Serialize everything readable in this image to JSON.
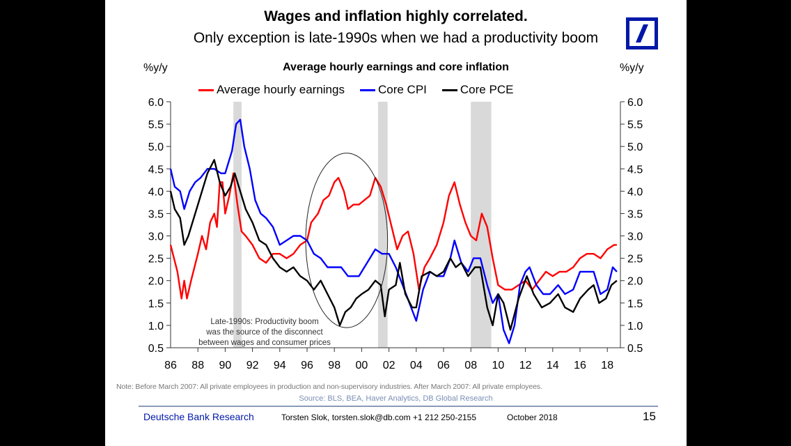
{
  "slide": {
    "title": "Wages and inflation highly correlated.",
    "subtitle": "Only exception is late-1990s when we had a productivity boom",
    "logo": "deutsche-bank-logo",
    "unit_left": "%y/y",
    "unit_right": "%y/y",
    "note": "Note: Before March 2007: All private employees in production and non-supervisory industries. After March 2007: All private employees.",
    "source": "Source: BLS, BEA, Haver Analytics, DB Global Research",
    "footer": {
      "brand": "Deutsche Bank Research",
      "author": "Torsten Slok, torsten.slok@db.com  +1 212 250-2155",
      "date": "October 2018",
      "page": "15"
    },
    "colors": {
      "brand": "#0018a8",
      "ahe": "#ff0000",
      "cpi": "#0000ff",
      "pce": "#000000",
      "recession": "#d9d9d9"
    }
  },
  "chart_data": {
    "type": "line",
    "title": "Average hourly earnings and core inflation",
    "xlabel": "",
    "ylabel": "%y/y",
    "ylabel_right": "%y/y",
    "xlim": [
      1986,
      2018.9
    ],
    "ylim": [
      0.5,
      6.0
    ],
    "yticks": [
      "6.0",
      "5.5",
      "5.0",
      "4.5",
      "4.0",
      "3.5",
      "3.0",
      "2.5",
      "2.0",
      "1.5",
      "1.0",
      "0.5"
    ],
    "ytick_values": [
      6.0,
      5.5,
      5.0,
      4.5,
      4.0,
      3.5,
      3.0,
      2.5,
      2.0,
      1.5,
      1.0,
      0.5
    ],
    "xticks": [
      "86",
      "88",
      "90",
      "92",
      "94",
      "96",
      "98",
      "00",
      "02",
      "04",
      "06",
      "08",
      "10",
      "12",
      "14",
      "16",
      "18"
    ],
    "xtick_values": [
      1986,
      1988,
      1990,
      1992,
      1994,
      1996,
      1998,
      2000,
      2002,
      2004,
      2006,
      2008,
      2010,
      2012,
      2014,
      2016,
      2018
    ],
    "grid": false,
    "legend_position": "top",
    "recessions": [
      [
        1990.6,
        1991.2
      ],
      [
        2001.2,
        2001.9
      ],
      [
        2008.0,
        2009.5
      ]
    ],
    "annotation": {
      "lines": [
        "Late-1990s: Productivity boom",
        "was the source of the disconnect",
        "between wages and consumer prices"
      ],
      "ellipse_x_range": [
        1995.9,
        2001.9
      ],
      "ellipse_y_range": [
        0.95,
        4.85
      ]
    },
    "series": [
      {
        "name": "Average hourly earnings",
        "color": "#ff0000",
        "x": [
          1986.0,
          1986.5,
          1986.8,
          1987.0,
          1987.2,
          1987.5,
          1988.0,
          1988.3,
          1988.6,
          1988.9,
          1989.2,
          1989.4,
          1989.6,
          1989.8,
          1990.0,
          1990.3,
          1990.6,
          1990.9,
          1991.2,
          1991.5,
          1992.0,
          1992.5,
          1993.0,
          1993.5,
          1994.0,
          1994.5,
          1995.0,
          1995.5,
          1996.0,
          1996.3,
          1996.8,
          1997.2,
          1997.6,
          1998.0,
          1998.3,
          1998.7,
          1999.0,
          1999.4,
          1999.8,
          2000.2,
          2000.6,
          2001.0,
          2001.4,
          2001.8,
          2002.2,
          2002.6,
          2003.0,
          2003.4,
          2003.8,
          2004.2,
          2004.6,
          2005.0,
          2005.5,
          2006.0,
          2006.4,
          2006.8,
          2007.2,
          2007.6,
          2008.0,
          2008.4,
          2008.8,
          2009.2,
          2009.6,
          2010.0,
          2010.5,
          2011.0,
          2011.5,
          2012.0,
          2012.5,
          2013.0,
          2013.5,
          2014.0,
          2014.5,
          2015.0,
          2015.5,
          2016.0,
          2016.5,
          2017.0,
          2017.5,
          2018.0,
          2018.5,
          2018.7
        ],
        "values": [
          2.8,
          2.2,
          1.6,
          2.0,
          1.6,
          2.0,
          2.6,
          3.0,
          2.7,
          3.3,
          3.5,
          3.2,
          4.2,
          4.2,
          3.5,
          3.9,
          4.4,
          3.7,
          3.1,
          3.0,
          2.8,
          2.5,
          2.4,
          2.6,
          2.6,
          2.5,
          2.6,
          2.8,
          2.9,
          3.3,
          3.5,
          3.8,
          3.9,
          4.2,
          4.3,
          4.0,
          3.6,
          3.7,
          3.7,
          3.8,
          3.9,
          4.3,
          4.1,
          3.7,
          3.2,
          2.7,
          3.0,
          3.1,
          2.6,
          1.8,
          2.3,
          2.5,
          2.8,
          3.3,
          3.9,
          4.2,
          3.7,
          3.3,
          3.0,
          2.9,
          3.5,
          3.2,
          2.5,
          1.9,
          1.8,
          1.8,
          1.9,
          2.0,
          1.8,
          2.0,
          2.2,
          2.1,
          2.2,
          2.2,
          2.3,
          2.5,
          2.6,
          2.6,
          2.5,
          2.7,
          2.8,
          2.8
        ]
      },
      {
        "name": "Core CPI",
        "color": "#0000ff",
        "x": [
          1986.0,
          1986.3,
          1986.7,
          1987.0,
          1987.4,
          1987.8,
          1988.2,
          1988.7,
          1989.2,
          1989.7,
          1990.0,
          1990.5,
          1990.8,
          1991.1,
          1991.4,
          1991.8,
          1992.2,
          1992.6,
          1993.0,
          1993.5,
          1994.0,
          1994.5,
          1995.0,
          1995.5,
          1996.0,
          1996.5,
          1997.0,
          1997.5,
          1998.0,
          1998.5,
          1999.0,
          1999.4,
          1999.8,
          2000.2,
          2000.6,
          2001.0,
          2001.5,
          2002.0,
          2002.5,
          2003.0,
          2003.5,
          2004.0,
          2004.5,
          2005.0,
          2005.5,
          2006.0,
          2006.5,
          2006.8,
          2007.3,
          2007.8,
          2008.2,
          2008.7,
          2009.2,
          2009.6,
          2010.0,
          2010.4,
          2010.8,
          2011.2,
          2011.6,
          2012.0,
          2012.3,
          2012.8,
          2013.3,
          2013.8,
          2014.4,
          2014.9,
          2015.5,
          2016.0,
          2016.5,
          2017.0,
          2017.5,
          2018.0,
          2018.4,
          2018.7
        ],
        "values": [
          4.5,
          4.1,
          4.0,
          3.6,
          4.0,
          4.2,
          4.3,
          4.5,
          4.5,
          4.4,
          4.4,
          4.9,
          5.5,
          5.6,
          5.0,
          4.5,
          3.8,
          3.5,
          3.4,
          3.2,
          2.8,
          2.9,
          3.0,
          3.0,
          2.9,
          2.6,
          2.5,
          2.3,
          2.3,
          2.3,
          2.1,
          2.1,
          2.1,
          2.3,
          2.5,
          2.7,
          2.6,
          2.6,
          2.3,
          1.9,
          1.5,
          1.1,
          1.8,
          2.2,
          2.1,
          2.1,
          2.5,
          2.9,
          2.4,
          2.2,
          2.5,
          2.5,
          1.9,
          1.5,
          1.7,
          0.9,
          0.6,
          1.0,
          1.9,
          2.2,
          2.3,
          1.9,
          1.7,
          1.7,
          1.9,
          1.7,
          1.8,
          2.2,
          2.2,
          2.2,
          1.7,
          1.8,
          2.3,
          2.2
        ]
      },
      {
        "name": "Core PCE",
        "color": "#000000",
        "x": [
          1986.0,
          1986.3,
          1986.7,
          1987.0,
          1987.3,
          1987.8,
          1988.3,
          1988.7,
          1989.2,
          1989.6,
          1990.0,
          1990.4,
          1990.7,
          1991.0,
          1991.5,
          1992.0,
          1992.5,
          1993.0,
          1993.5,
          1994.0,
          1994.5,
          1995.0,
          1995.5,
          1996.0,
          1996.5,
          1997.0,
          1997.5,
          1998.0,
          1998.4,
          1998.8,
          1999.2,
          1999.6,
          2000.0,
          2000.5,
          2001.0,
          2001.4,
          2001.7,
          2002.0,
          2002.5,
          2002.8,
          2003.2,
          2003.7,
          2004.0,
          2004.4,
          2005.0,
          2005.5,
          2006.0,
          2006.5,
          2006.9,
          2007.3,
          2007.8,
          2008.3,
          2008.7,
          2009.2,
          2009.6,
          2010.0,
          2010.4,
          2010.9,
          2011.5,
          2012.1,
          2012.6,
          2013.2,
          2013.8,
          2014.4,
          2014.9,
          2015.5,
          2016.0,
          2016.6,
          2017.0,
          2017.4,
          2017.9,
          2018.3,
          2018.7
        ],
        "values": [
          4.0,
          3.6,
          3.4,
          2.8,
          3.0,
          3.5,
          4.0,
          4.4,
          4.7,
          4.2,
          3.9,
          4.1,
          4.4,
          4.1,
          3.6,
          3.3,
          2.9,
          2.8,
          2.5,
          2.3,
          2.2,
          2.3,
          2.1,
          2.0,
          1.8,
          2.0,
          1.7,
          1.4,
          1.0,
          1.3,
          1.4,
          1.6,
          1.7,
          1.8,
          2.0,
          1.9,
          1.2,
          1.8,
          1.9,
          2.4,
          1.7,
          1.4,
          1.4,
          2.1,
          2.2,
          2.1,
          2.2,
          2.5,
          2.3,
          2.4,
          2.1,
          2.3,
          2.3,
          1.4,
          1.0,
          1.7,
          1.5,
          0.9,
          1.6,
          2.1,
          1.7,
          1.4,
          1.5,
          1.7,
          1.4,
          1.3,
          1.6,
          1.8,
          1.9,
          1.5,
          1.6,
          1.9,
          2.0
        ]
      }
    ]
  }
}
